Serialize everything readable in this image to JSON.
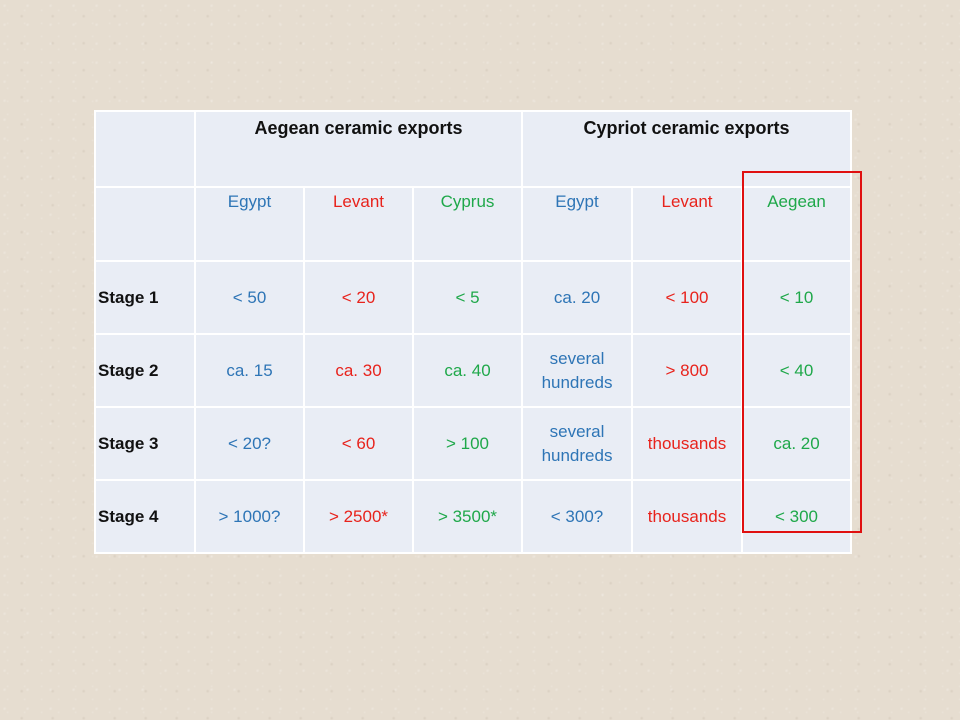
{
  "table": {
    "groups": [
      "Aegean ceramic exports",
      "Cypriot ceramic exports"
    ],
    "columns": [
      "Egypt",
      "Levant",
      "Cyprus",
      "Egypt",
      "Levant",
      "Aegean"
    ],
    "rows": [
      {
        "label": "Stage 1",
        "cells": [
          "< 50",
          "< 20",
          "< 5",
          "ca. 20",
          "< 100",
          "< 10"
        ]
      },
      {
        "label": "Stage 2",
        "cells": [
          "ca. 15",
          "ca. 30",
          "ca. 40",
          "several hundreds",
          "> 800",
          "< 40"
        ]
      },
      {
        "label": "Stage 3",
        "cells": [
          "< 20?",
          "< 60",
          "> 100",
          "several hundreds",
          "thousands",
          "ca. 20"
        ]
      },
      {
        "label": "Stage 4",
        "cells": [
          "> 1000?",
          "> 2500*",
          "> 3500*",
          "< 300?",
          "thousands",
          "< 300"
        ]
      }
    ]
  },
  "colors": {
    "egypt": "#2e75b6",
    "levant": "#e8231c",
    "cyprus_aegean": "#1fa84a",
    "highlight": "#e01010"
  }
}
